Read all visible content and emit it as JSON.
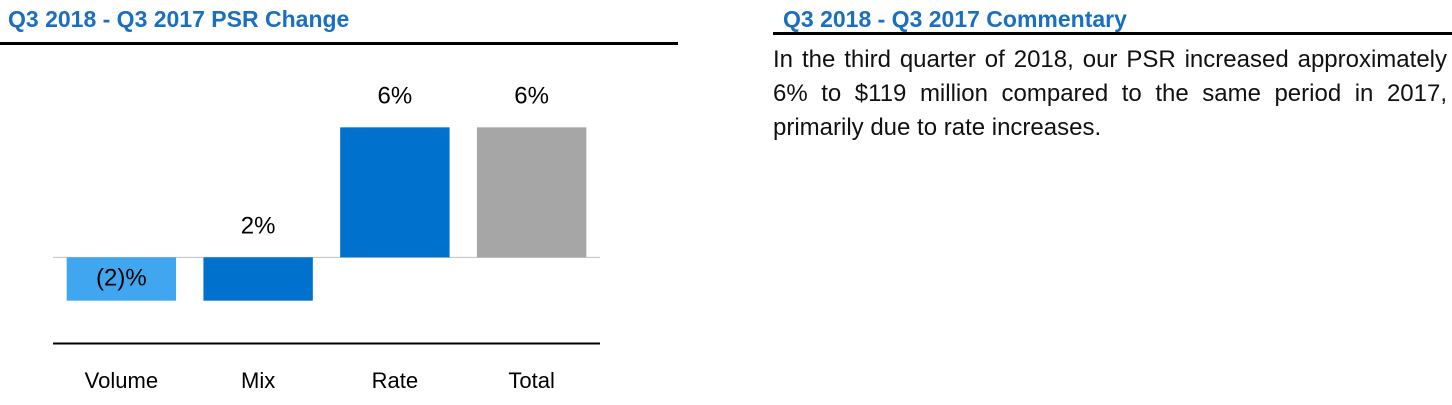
{
  "chart_data": {
    "type": "waterfall",
    "title": "Q3 2018 - Q3 2017 PSR Change",
    "categories": [
      "Volume",
      "Mix",
      "Rate",
      "Total"
    ],
    "values": [
      -2,
      2,
      6,
      6
    ],
    "value_labels": [
      "(2)%",
      "2%",
      "6%",
      "6%"
    ],
    "totals": [
      false,
      false,
      false,
      true
    ],
    "colors": [
      "#41a6f0",
      "#0071cd",
      "#0071cd",
      "#a6a6a6"
    ],
    "ylim": [
      -4,
      8
    ]
  },
  "commentary": {
    "title": "Q3 2018 - Q3 2017 Commentary",
    "text": "In the third quarter of 2018, our PSR increased approximately 6% to $119 million compared to the same period in 2017, primarily due to rate increases."
  }
}
